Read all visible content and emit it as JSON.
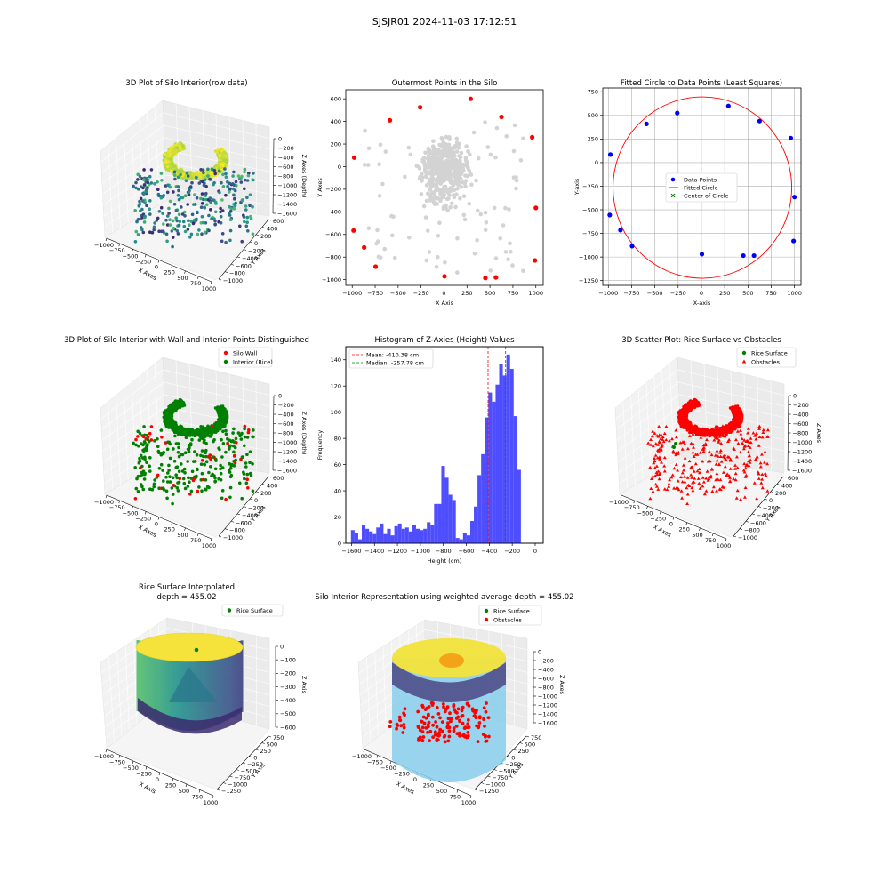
{
  "figure": {
    "suptitle": "SJSJR01 2024-11-03 17:12:51"
  },
  "colors": {
    "blue": "#0000ff",
    "red": "#ff0000",
    "green": "#008000",
    "gray": "#d3d3d3",
    "hist": "#4444ff",
    "skyblue": "#87ceeb",
    "mean_line": "#ff0000",
    "median_line": "#008000"
  },
  "chart_data": [
    {
      "id": "p1",
      "type": "scatter3d",
      "title": "3D Plot of Silo Interior(row data)",
      "xlabel": "X Axes",
      "ylabel": "Y Axes",
      "zlabel": "Z Axes (Depth)",
      "xticks": [
        "−1000",
        "−750",
        "−500",
        "−250",
        "0",
        "250",
        "500",
        "750",
        "1000"
      ],
      "yticks": [
        "600",
        "400",
        "200",
        "0",
        "−200",
        "−400",
        "−600",
        "−800",
        "−1000"
      ],
      "zticks": [
        "0",
        "−200",
        "−400",
        "−600",
        "−800",
        "−1000",
        "−1200",
        "−1400",
        "−1600"
      ],
      "colormap": "viridis"
    },
    {
      "id": "p2",
      "type": "scatter",
      "title": "Outermost Points in the Silo",
      "xlabel": "X Axis",
      "ylabel": "Y Axes",
      "xlim": [
        -1070,
        1080
      ],
      "ylim": [
        -1050,
        680
      ],
      "xticks": [
        -1000,
        -750,
        -500,
        -250,
        0,
        250,
        500,
        750,
        1000
      ],
      "xtick_labels": [
        "−1000",
        "−750",
        "−500",
        "−250",
        "0",
        "250",
        "500",
        "750",
        "1000"
      ],
      "yticks": [
        -1000,
        -800,
        -600,
        -400,
        -200,
        0,
        200,
        400,
        600
      ],
      "ytick_labels": [
        "−1000",
        "−800",
        "−600",
        "−400",
        "−200",
        "0",
        "200",
        "400",
        "600"
      ],
      "outermost_points": [
        [
          -978,
          80
        ],
        [
          -590,
          410
        ],
        [
          -260,
          525
        ],
        [
          290,
          600
        ],
        [
          625,
          440
        ],
        [
          960,
          260
        ],
        [
          1000,
          -365
        ],
        [
          990,
          -830
        ],
        [
          565,
          -980
        ],
        [
          450,
          -985
        ],
        [
          5,
          -970
        ],
        [
          -745,
          -885
        ],
        [
          -870,
          -715
        ],
        [
          -985,
          -565
        ]
      ]
    },
    {
      "id": "p3",
      "type": "scatter",
      "title": "Fitted Circle to Data Points (Least Squares)",
      "xlabel": "X-axis",
      "ylabel": "Y-axis",
      "xlim": [
        -1060,
        1070
      ],
      "ylim": [
        -1300,
        790
      ],
      "xticks": [
        -1000,
        -750,
        -500,
        -250,
        0,
        250,
        500,
        750,
        1000
      ],
      "xtick_labels": [
        "−1000",
        "−750",
        "−500",
        "−250",
        "0",
        "250",
        "500",
        "750",
        "1000"
      ],
      "yticks": [
        -1250,
        -1000,
        -750,
        -500,
        -250,
        0,
        250,
        500,
        750
      ],
      "ytick_labels": [
        "−1250",
        "−1000",
        "−750",
        "−500",
        "−250",
        "0",
        "250",
        "500",
        "750"
      ],
      "grid": true,
      "legend": [
        "Data Points",
        "Fitted Circle",
        "Center of Circle"
      ],
      "points": [
        [
          -978,
          85
        ],
        [
          -590,
          410
        ],
        [
          -260,
          525
        ],
        [
          290,
          600
        ],
        [
          625,
          440
        ],
        [
          960,
          260
        ],
        [
          1000,
          -365
        ],
        [
          990,
          -830
        ],
        [
          565,
          -985
        ],
        [
          450,
          -985
        ],
        [
          5,
          -970
        ],
        [
          -745,
          -885
        ],
        [
          -870,
          -715
        ],
        [
          -985,
          -555
        ]
      ],
      "circle": {
        "cx": 10,
        "cy": -265,
        "r": 960
      }
    },
    {
      "id": "p4",
      "type": "scatter3d",
      "title": "3D Plot of Silo Interior with Wall and Interior Points Distinguished",
      "xlabel": "X Axes",
      "ylabel": "Y Axes",
      "zlabel": "Z Axes (Depth)",
      "legend": [
        "Silo Wall",
        "Interior (Rice)"
      ],
      "xticks": [
        "−1000",
        "−750",
        "−500",
        "−250",
        "0",
        "250",
        "500",
        "750",
        "1000"
      ],
      "yticks": [
        "600",
        "400",
        "200",
        "0",
        "−200",
        "−400",
        "−600",
        "−800",
        "−1000"
      ],
      "zticks": [
        "0",
        "−200",
        "−400",
        "−600",
        "−800",
        "−1000",
        "−1200",
        "−1400",
        "−1600"
      ]
    },
    {
      "id": "p5",
      "type": "bar",
      "title": "Histogram of Z-Axies (Height) Values",
      "xlabel": "Height (cm)",
      "ylabel": "Frequency",
      "xlim": [
        -1650,
        70
      ],
      "ylim": [
        0,
        150
      ],
      "xticks": [
        -1600,
        -1400,
        -1200,
        -1000,
        -800,
        -600,
        -400,
        -200,
        0
      ],
      "xtick_labels": [
        "−1600",
        "−1400",
        "−1200",
        "−1000",
        "−800",
        "−600",
        "−400",
        "−200",
        "0"
      ],
      "yticks": [
        0,
        20,
        40,
        60,
        80,
        100,
        120,
        140
      ],
      "bin_start": -1605,
      "bin_width": 31.5,
      "values": [
        10,
        8,
        3,
        14,
        11,
        9,
        7,
        12,
        15,
        7,
        11,
        6,
        13,
        15,
        11,
        12,
        9,
        14,
        11,
        10,
        11,
        16,
        14,
        30,
        30,
        59,
        50,
        37,
        33,
        4,
        3,
        8,
        6,
        17,
        28,
        52,
        68,
        96,
        115,
        108,
        121,
        137,
        128,
        144,
        133,
        97,
        56
      ],
      "mean": -410.38,
      "median": -257.78,
      "legend": [
        "Mean: -410.38 cm",
        "Median: -257.78 cm"
      ]
    },
    {
      "id": "p6",
      "type": "scatter3d",
      "title": "3D Scatter Plot: Rice Surface vs Obstacles",
      "xlabel": "X Axes",
      "ylabel": "Y Axes",
      "zlabel": "Z Axes",
      "legend": [
        "Rice Surface",
        "Obstacles"
      ],
      "xticks": [
        "−1000",
        "−750",
        "−500",
        "−250",
        "0",
        "250",
        "500",
        "750",
        "1000"
      ],
      "yticks": [
        "600",
        "400",
        "200",
        "0",
        "−200",
        "−400",
        "−600",
        "−800",
        "−1000"
      ],
      "zticks": [
        "0",
        "−200",
        "−400",
        "−600",
        "−800",
        "−1000",
        "−1200",
        "−1400",
        "−1600"
      ]
    },
    {
      "id": "p7",
      "type": "surface3d",
      "title": "Rice Surface Interpolated",
      "subtitle": "depth = 455.02",
      "xlabel": "X Axis",
      "ylabel": "Y Axis",
      "zlabel": "Z Axis",
      "legend": [
        "Rice Surface"
      ],
      "xticks": [
        "−1000",
        "−750",
        "−500",
        "−250",
        "0",
        "250",
        "500",
        "750",
        "1000"
      ],
      "yticks": [
        "750",
        "500",
        "250",
        "0",
        "−250",
        "−500",
        "−750",
        "−1000",
        "−1250"
      ],
      "zticks": [
        "0",
        "−100",
        "−200",
        "−300",
        "−400",
        "−500",
        "−600"
      ]
    },
    {
      "id": "p8",
      "type": "surface3d",
      "title": "Silo Interior Representation using weighted average depth = 455.02",
      "xlabel": "X Axes",
      "ylabel": "Y Axes",
      "zlabel": "Z Axes",
      "legend": [
        "Rice Surface",
        "Obstacles"
      ],
      "xticks": [
        "−1000",
        "−750",
        "−500",
        "−250",
        "0",
        "250",
        "500",
        "750",
        "1000"
      ],
      "yticks": [
        "750",
        "500",
        "250",
        "0",
        "−250",
        "−500",
        "−750",
        "−1000",
        "−1250"
      ],
      "zticks": [
        "0",
        "−200",
        "−400",
        "−600",
        "−800",
        "−1000",
        "−1200",
        "−1400",
        "−1600"
      ]
    }
  ]
}
